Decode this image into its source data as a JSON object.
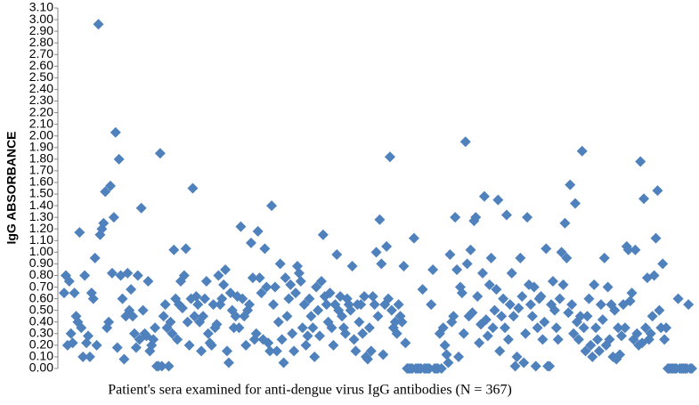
{
  "chart_data": {
    "type": "scatter",
    "y_label": "IgG ABSORBANCE",
    "x_label": "Patient's sera examined for anti-dengue virus IgG antibodies (N = 367)",
    "color": "#4f81bd",
    "ylim": [
      0,
      3.1
    ],
    "yticks": [
      {
        "value": 0,
        "label": "0.00"
      },
      {
        "value": 0.1,
        "label": "0.10"
      },
      {
        "value": 0.2,
        "label": "0.20"
      },
      {
        "value": 0.3,
        "label": "0.30"
      },
      {
        "value": 0.4,
        "label": "0.40"
      },
      {
        "value": 0.5,
        "label": "0.50"
      },
      {
        "value": 0.6,
        "label": "0.60"
      },
      {
        "value": 0.7,
        "label": "0.70"
      },
      {
        "value": 0.8,
        "label": "0.80"
      },
      {
        "value": 0.9,
        "label": "0.90"
      },
      {
        "value": 1.0,
        "label": "1.00"
      },
      {
        "value": 1.1,
        "label": "1.10"
      },
      {
        "value": 1.2,
        "label": "1.20"
      },
      {
        "value": 1.3,
        "label": "1.30"
      },
      {
        "value": 1.4,
        "label": "1.40"
      },
      {
        "value": 1.5,
        "label": "1.50"
      },
      {
        "value": 1.6,
        "label": "1.60"
      },
      {
        "value": 1.7,
        "label": "1.70"
      },
      {
        "value": 1.8,
        "label": "1.80"
      },
      {
        "value": 1.9,
        "label": "1.90"
      },
      {
        "value": 2.0,
        "label": "2.00"
      },
      {
        "value": 2.1,
        "label": "2.10"
      },
      {
        "value": 2.2,
        "label": "2.20"
      },
      {
        "value": 2.3,
        "label": "2.30"
      },
      {
        "value": 2.4,
        "label": "2.40"
      },
      {
        "value": 2.5,
        "label": "2.50"
      },
      {
        "value": 2.6,
        "label": "2.60"
      },
      {
        "value": 2.7,
        "label": "2.70"
      },
      {
        "value": 2.8,
        "label": "2.80"
      },
      {
        "value": 2.9,
        "label": "2.90"
      },
      {
        "value": 3.0,
        "label": "3.00"
      },
      {
        "value": 3.1,
        "label": "3.10"
      }
    ],
    "values": [
      0.65,
      0.8,
      0.2,
      0.75,
      0.3,
      0.22,
      0.65,
      0.45,
      0.4,
      1.17,
      0.35,
      0.1,
      0.8,
      0.22,
      0.28,
      0.1,
      0.65,
      0.6,
      0.95,
      0.2,
      2.96,
      1.15,
      1.2,
      1.25,
      1.52,
      0.35,
      0.4,
      1.57,
      0.82,
      1.3,
      2.03,
      0.18,
      1.8,
      0.8,
      0.6,
      0.08,
      0.45,
      0.82,
      0.5,
      0.68,
      0.45,
      0.3,
      0.18,
      0.8,
      0.25,
      1.38,
      0.5,
      0.3,
      0.28,
      0.75,
      0.15,
      0.2,
      0.25,
      0.35,
      0.02,
      0.02,
      1.85,
      0.02,
      0.45,
      0.55,
      0.35,
      0.02,
      0.4,
      0.3,
      1.02,
      0.6,
      0.25,
      0.55,
      0.75,
      0.52,
      0.8,
      1.03,
      0.4,
      0.2,
      0.6,
      1.55,
      0.45,
      0.62,
      0.55,
      0.4,
      0.15,
      0.45,
      0.6,
      0.75,
      0.3,
      0.22,
      0.2,
      0.55,
      0.35,
      0.38,
      0.8,
      0.55,
      0.6,
      0.72,
      0.85,
      0.15,
      0.05,
      0.65,
      0.5,
      0.35,
      0.45,
      0.62,
      0.35,
      1.22,
      0.6,
      0.45,
      0.2,
      0.5,
      0.55,
      1.08,
      0.78,
      0.25,
      0.3,
      1.18,
      0.78,
      0.65,
      0.25,
      1.03,
      0.7,
      0.22,
      0.15,
      1.4,
      0.55,
      0.7,
      0.15,
      0.4,
      0.9,
      0.25,
      0.05,
      0.78,
      0.45,
      0.6,
      0.72,
      0.3,
      0.15,
      0.65,
      0.88,
      0.82,
      0.75,
      0.35,
      0.55,
      0.2,
      0.28,
      0.6,
      0.45,
      0.35,
      0.1,
      0.7,
      0.5,
      0.28,
      0.75,
      1.15,
      0.62,
      0.55,
      0.4,
      0.65,
      0.35,
      0.2,
      0.55,
      0.98,
      0.5,
      0.62,
      0.45,
      0.35,
      0.3,
      0.6,
      0.55,
      0.5,
      0.88,
      0.25,
      0.15,
      0.55,
      0.4,
      0.55,
      0.3,
      0.62,
      0.1,
      0.08,
      0.35,
      0.15,
      0.62,
      0.55,
      1.0,
      0.45,
      1.28,
      0.9,
      0.12,
      0.55,
      1.05,
      0.6,
      1.82,
      0.5,
      0.35,
      0.4,
      0.3,
      0.55,
      0.45,
      0.4,
      0.88,
      0.22,
      0,
      0,
      0,
      0,
      1.12,
      0,
      0,
      0,
      0,
      0.68,
      0,
      0,
      0,
      0,
      0.55,
      0.85,
      0,
      0,
      0,
      0.3,
      0,
      0.35,
      0.2,
      0.12,
      0.05,
      0.98,
      0.4,
      0.45,
      1.3,
      0.85,
      0.1,
      0.7,
      0.65,
      0.3,
      1.95,
      0.9,
      0.45,
      1.02,
      0.48,
      1.27,
      1.3,
      0.62,
      0.22,
      0.38,
      0.82,
      1.48,
      0.42,
      0.28,
      0.72,
      0.95,
      0.35,
      0.5,
      0.68,
      1.45,
      0.15,
      0.45,
      0.6,
      0.35,
      1.32,
      0.25,
      0.55,
      0.82,
      0.45,
      0.02,
      0.1,
      0.52,
      0.95,
      0.62,
      0.05,
      0.3,
      1.3,
      0.72,
      0.55,
      0.45,
      0.7,
      0.02,
      0.35,
      0.6,
      0.62,
      0.25,
      0.4,
      1.03,
      0.02,
      0.02,
      0.55,
      0.75,
      0.5,
      0.35,
      0.25,
      0.6,
      1.0,
      0.72,
      1.25,
      0.95,
      0.48,
      1.58,
      0.55,
      0.3,
      1.42,
      0.4,
      0.25,
      0.45,
      1.87,
      0.35,
      0.15,
      0.45,
      0.6,
      0.2,
      0.1,
      0.72,
      0.35,
      0.25,
      0.15,
      0.55,
      0.42,
      0.95,
      0.2,
      0.7,
      0.25,
      0.55,
      0.1,
      0.5,
      0.08,
      0.35,
      0.12,
      0.28,
      0.55,
      0.35,
      1.05,
      1.02,
      0.58,
      0.65,
      0.25,
      1.02,
      0.3,
      0.2,
      1.78,
      0.22,
      1.46,
      0.35,
      0.78,
      0.25,
      0.3,
      0.45,
      0.8,
      1.12,
      1.53,
      0.5,
      0.35,
      0.9,
      0.25,
      0.35,
      0,
      0,
      0,
      0,
      0,
      0,
      0.6,
      0,
      0,
      0,
      0,
      0,
      0.55,
      0,
      0
    ]
  }
}
